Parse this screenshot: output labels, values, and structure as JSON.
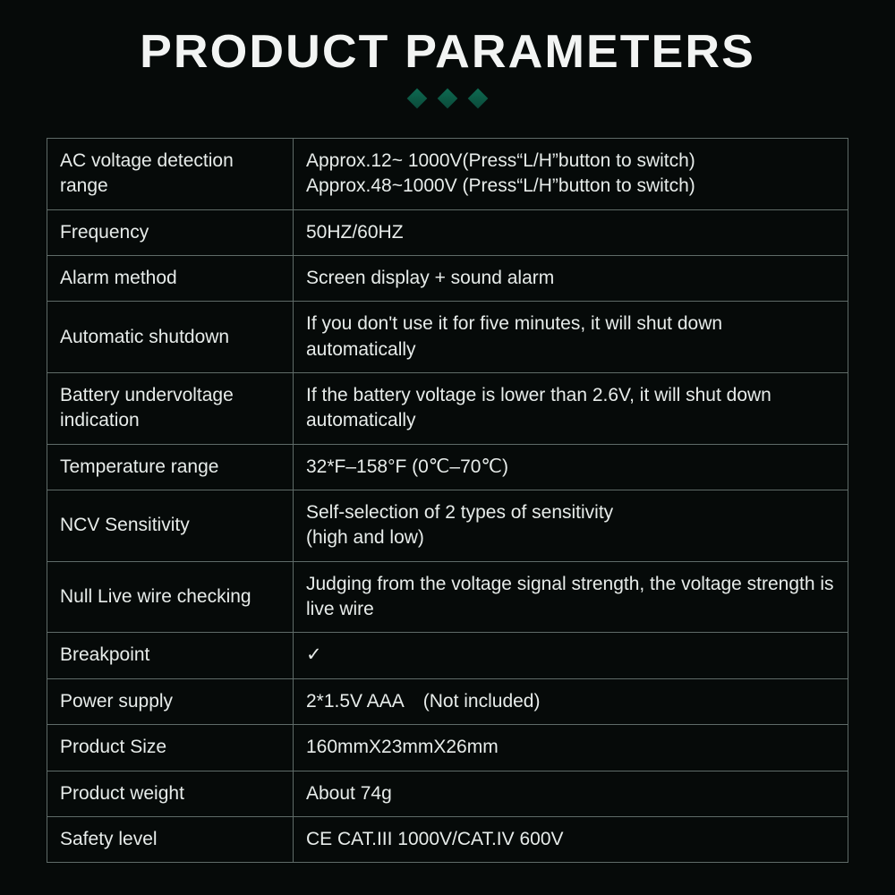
{
  "header": {
    "title": "PRODUCT PARAMETERS",
    "diamond_colors": [
      "#0e6b52",
      "#0e6b52",
      "#0e6b52"
    ]
  },
  "table": {
    "border_color": "#5f6b68",
    "text_color": "#e7ecea",
    "background_color": "#060a09",
    "label_fontsize": 21,
    "value_fontsize": 21,
    "label_col_width": 275,
    "rows": [
      {
        "label": "AC voltage detection range",
        "value": "Approx.12~ 1000V(Press“L/H”button to switch)\nApprox.48~1000V (Press“L/H”button to switch)"
      },
      {
        "label": "Frequency",
        "value": "50HZ/60HZ"
      },
      {
        "label": "Alarm method",
        "value": "Screen display + sound alarm"
      },
      {
        "label": "Automatic shutdown",
        "value": "If you don't use it for five minutes, it will shut down automatically"
      },
      {
        "label": "Battery undervoltage indication",
        "value": "If the battery voltage is lower than 2.6V, it will shut down automatically"
      },
      {
        "label": "Temperature range",
        "value": "32*F–158°F (0℃–70℃)"
      },
      {
        "label": "NCV Sensitivity",
        "value": "Self-selection of 2 types of sensitivity\n(high and low)"
      },
      {
        "label": "Null Live wire checking",
        "value": "Judging from the voltage signal strength, the voltage strength is live wire"
      },
      {
        "label": "Breakpoint",
        "value": "✓"
      },
      {
        "label": "Power supply",
        "value": "2*1.5V AAA (Not included)"
      },
      {
        "label": "Product Size",
        "value": "160mmX23mmX26mm"
      },
      {
        "label": "Product weight",
        "value": "About 74g"
      },
      {
        "label": "Safety level",
        "value": "CE CAT.III 1000V/CAT.IV 600V"
      }
    ]
  }
}
